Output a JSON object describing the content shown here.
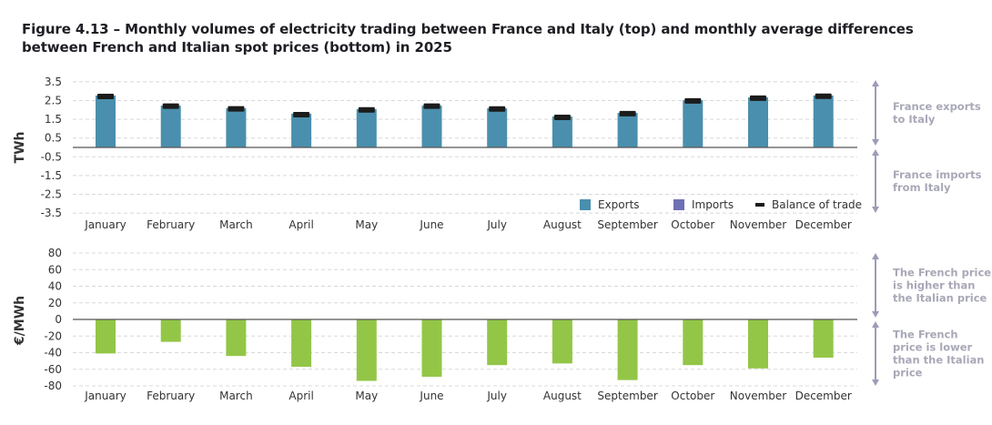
{
  "title": "Figure 4.13 – Monthly volumes of electricity trading between France and Italy (top) and monthly average differences between French and Italian spot prices (bottom) in 2025",
  "chart_data": [
    {
      "type": "bar",
      "ylabel": "TWh",
      "ylim": [
        -3.5,
        3.5
      ],
      "yticks": [
        "3.5",
        "2.5",
        "1.5",
        "0.5",
        "-0.5",
        "-1.5",
        "-2.5",
        "-3.5"
      ],
      "ytick_values": [
        3.5,
        2.5,
        1.5,
        0.5,
        -0.5,
        -1.5,
        -2.5,
        -3.5
      ],
      "grid": true,
      "legend_position": "bottom-right",
      "categories": [
        "January",
        "February",
        "March",
        "April",
        "May",
        "June",
        "July",
        "August",
        "September",
        "October",
        "November",
        "December"
      ],
      "series": [
        {
          "name": "Exports",
          "kind": "bar",
          "color": "#4a8fad",
          "values": [
            2.77,
            2.23,
            2.09,
            1.8,
            2.04,
            2.23,
            2.09,
            1.65,
            1.84,
            2.52,
            2.67,
            2.77
          ]
        },
        {
          "name": "Imports",
          "kind": "bar",
          "color": "#6f6fb5",
          "values": [
            0,
            0,
            0,
            0,
            0,
            0,
            0,
            0,
            0,
            0,
            0,
            0
          ]
        },
        {
          "name": "Balance of trade",
          "kind": "marker",
          "color": "#1c1c1c",
          "values": [
            2.72,
            2.2,
            2.06,
            1.75,
            2.0,
            2.2,
            2.05,
            1.6,
            1.8,
            2.48,
            2.63,
            2.73
          ]
        }
      ],
      "annotations": [
        {
          "direction": "up",
          "text": [
            "France exports",
            "to Italy"
          ]
        },
        {
          "direction": "down",
          "text": [
            "France imports",
            "from Italy"
          ]
        }
      ]
    },
    {
      "type": "bar",
      "ylabel": "€/MWh",
      "ylim": [
        -80,
        80
      ],
      "yticks": [
        "80",
        "60",
        "40",
        "20",
        "0",
        "-20",
        "-40",
        "-60",
        "-80"
      ],
      "ytick_values": [
        80,
        60,
        40,
        20,
        0,
        -20,
        -40,
        -60,
        -80
      ],
      "grid": true,
      "categories": [
        "January",
        "February",
        "March",
        "April",
        "May",
        "June",
        "July",
        "August",
        "September",
        "October",
        "November",
        "December"
      ],
      "series": [
        {
          "color": "#93c647",
          "values": [
            -41,
            -27,
            -44,
            -57,
            -74,
            -69,
            -55,
            -53,
            -73,
            -55,
            -59,
            -46
          ]
        }
      ],
      "annotations": [
        {
          "direction": "up",
          "text": [
            "The French price",
            "is higher than",
            "the Italian price"
          ]
        },
        {
          "direction": "down",
          "text": [
            "The French",
            "price is lower",
            "than the Italian",
            "price"
          ]
        }
      ]
    }
  ]
}
